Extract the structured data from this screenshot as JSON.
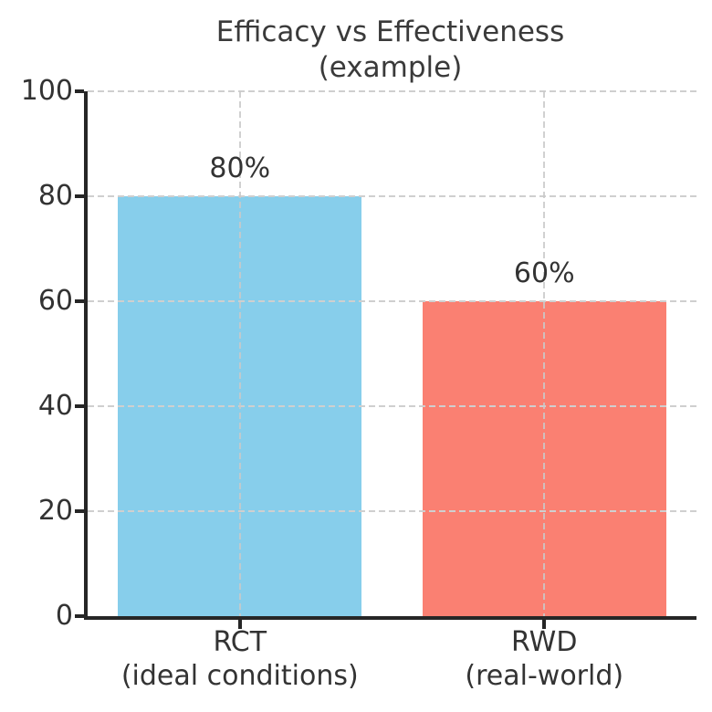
{
  "title": {
    "line1": "Efficacy vs Effectiveness",
    "line2": "(example)"
  },
  "chart_data": {
    "type": "bar",
    "title": "Efficacy vs Effectiveness (example)",
    "categories": [
      "RCT",
      "RWD"
    ],
    "category_sublabels": [
      "(ideal conditions)",
      "(real-world)"
    ],
    "values": [
      80,
      60
    ],
    "bar_labels": [
      "80%",
      "60%"
    ],
    "bar_colors": [
      "#87CEEB",
      "#FA8072"
    ],
    "xlabel": "",
    "ylabel": "",
    "ylim": [
      0,
      100
    ],
    "yticks": [
      0,
      20,
      40,
      60,
      80,
      100
    ],
    "grid": {
      "style": "dashed",
      "axes": "both",
      "color": "#cfcfcf",
      "drawn_over_bars": true
    },
    "legend": "none"
  },
  "colors": {
    "text": "#333333",
    "title_text": "#3a3a3a",
    "axis_spine": "#262626",
    "grid": "#cfcfcf",
    "background": "#ffffff",
    "bar_rct": "#87CEEB",
    "bar_rwd": "#FA8072"
  }
}
